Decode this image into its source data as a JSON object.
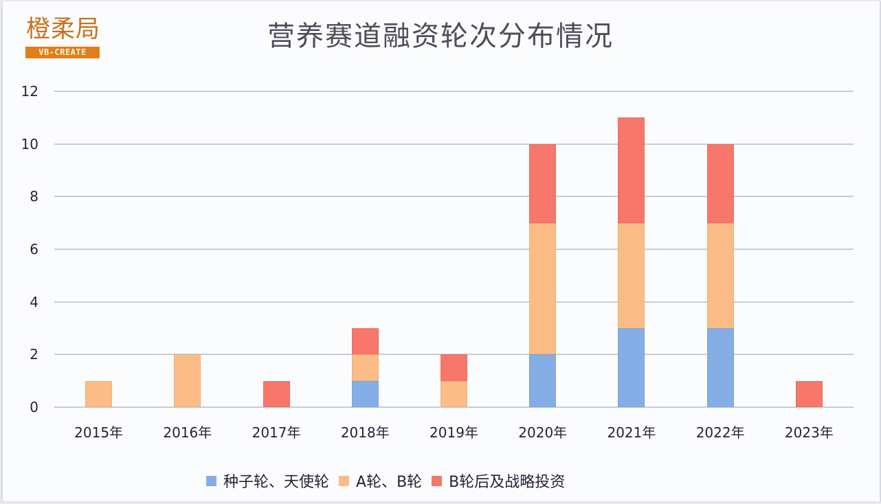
{
  "logo": {
    "cn_text": "橙柔局",
    "en_text": "VB-CREATE"
  },
  "title": "营养赛道融资轮次分布情况",
  "colors": {
    "seed_angel": "#85aee6",
    "a_b": "#fbbd85",
    "post_b_strategic": "#f7776a",
    "grid": "#c9ccd4",
    "text": "#2a1f33"
  },
  "legend": [
    {
      "label": "种子轮、天使轮",
      "color": "#85aee6"
    },
    {
      "label": "A轮、B轮",
      "color": "#fbbd85"
    },
    {
      "label": "B轮后及战略投资",
      "color": "#f7776a"
    }
  ],
  "chart_data": {
    "type": "bar",
    "stacked": true,
    "title": "营养赛道融资轮次分布情况",
    "xlabel": "",
    "ylabel": "",
    "ylim": [
      0,
      12
    ],
    "yticks": [
      0,
      2,
      4,
      6,
      8,
      10,
      12
    ],
    "grid": true,
    "legend_position": "bottom",
    "categories": [
      "2015年",
      "2016年",
      "2017年",
      "2018年",
      "2019年",
      "2020年",
      "2021年",
      "2022年",
      "2023年"
    ],
    "series": [
      {
        "name": "种子轮、天使轮",
        "color": "#85aee6",
        "values": [
          0,
          0,
          0,
          1,
          0,
          2,
          3,
          3,
          0
        ]
      },
      {
        "name": "A轮、B轮",
        "color": "#fbbd85",
        "values": [
          1,
          2,
          0,
          1,
          1,
          5,
          4,
          4,
          0
        ]
      },
      {
        "name": "B轮后及战略投资",
        "color": "#f7776a",
        "values": [
          0,
          0,
          1,
          1,
          1,
          3,
          4,
          3,
          1
        ]
      }
    ]
  }
}
